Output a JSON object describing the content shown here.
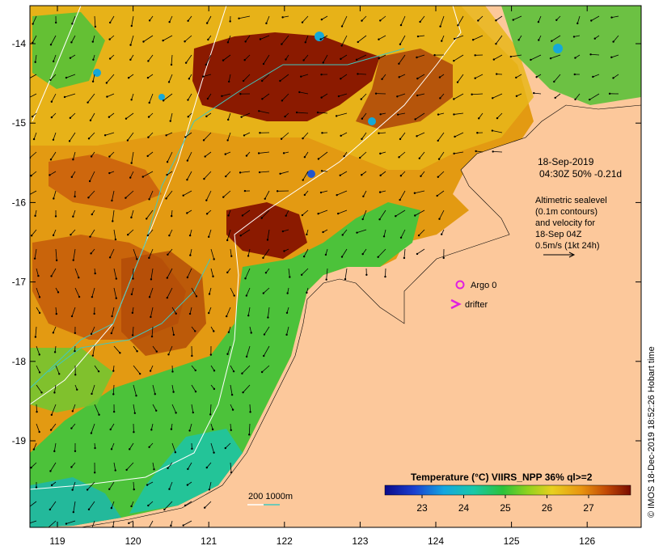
{
  "map": {
    "lon_ticks": [
      "119",
      "120",
      "121",
      "122",
      "123",
      "124",
      "125",
      "126"
    ],
    "lat_ticks": [
      "-14",
      "-15",
      "-16",
      "-17",
      "-18",
      "-19"
    ],
    "date_line": "18-Sep-2019",
    "time_line": "04:30Z  50% -0.21d",
    "altimetry_lines": [
      "Altimetric sealevel",
      "(0.1m contours)",
      "and velocity for",
      "18-Sep 04Z",
      "0.5m/s (1kt 24h)"
    ],
    "argo_label": "Argo 0",
    "drifter_label": "drifter",
    "scale_text": "200  1000m",
    "colorbar_title": "Temperature (°C) VIIRS_NPP 36% ql>=2",
    "colorbar_ticks": [
      "23",
      "24",
      "25",
      "26",
      "27"
    ],
    "credit": "© IMOS 18-Dec-2019 18:52:26 Hobart time",
    "colors": {
      "land": "#fcc89b",
      "warm_dark": "#8b1a00",
      "warm": "#c45a0a",
      "orange": "#e39a12",
      "yellow": "#e8c51e",
      "green": "#4cc23a",
      "teal": "#1fc4a3",
      "cyan": "#15a8d8",
      "blue": "#2255cc"
    }
  }
}
